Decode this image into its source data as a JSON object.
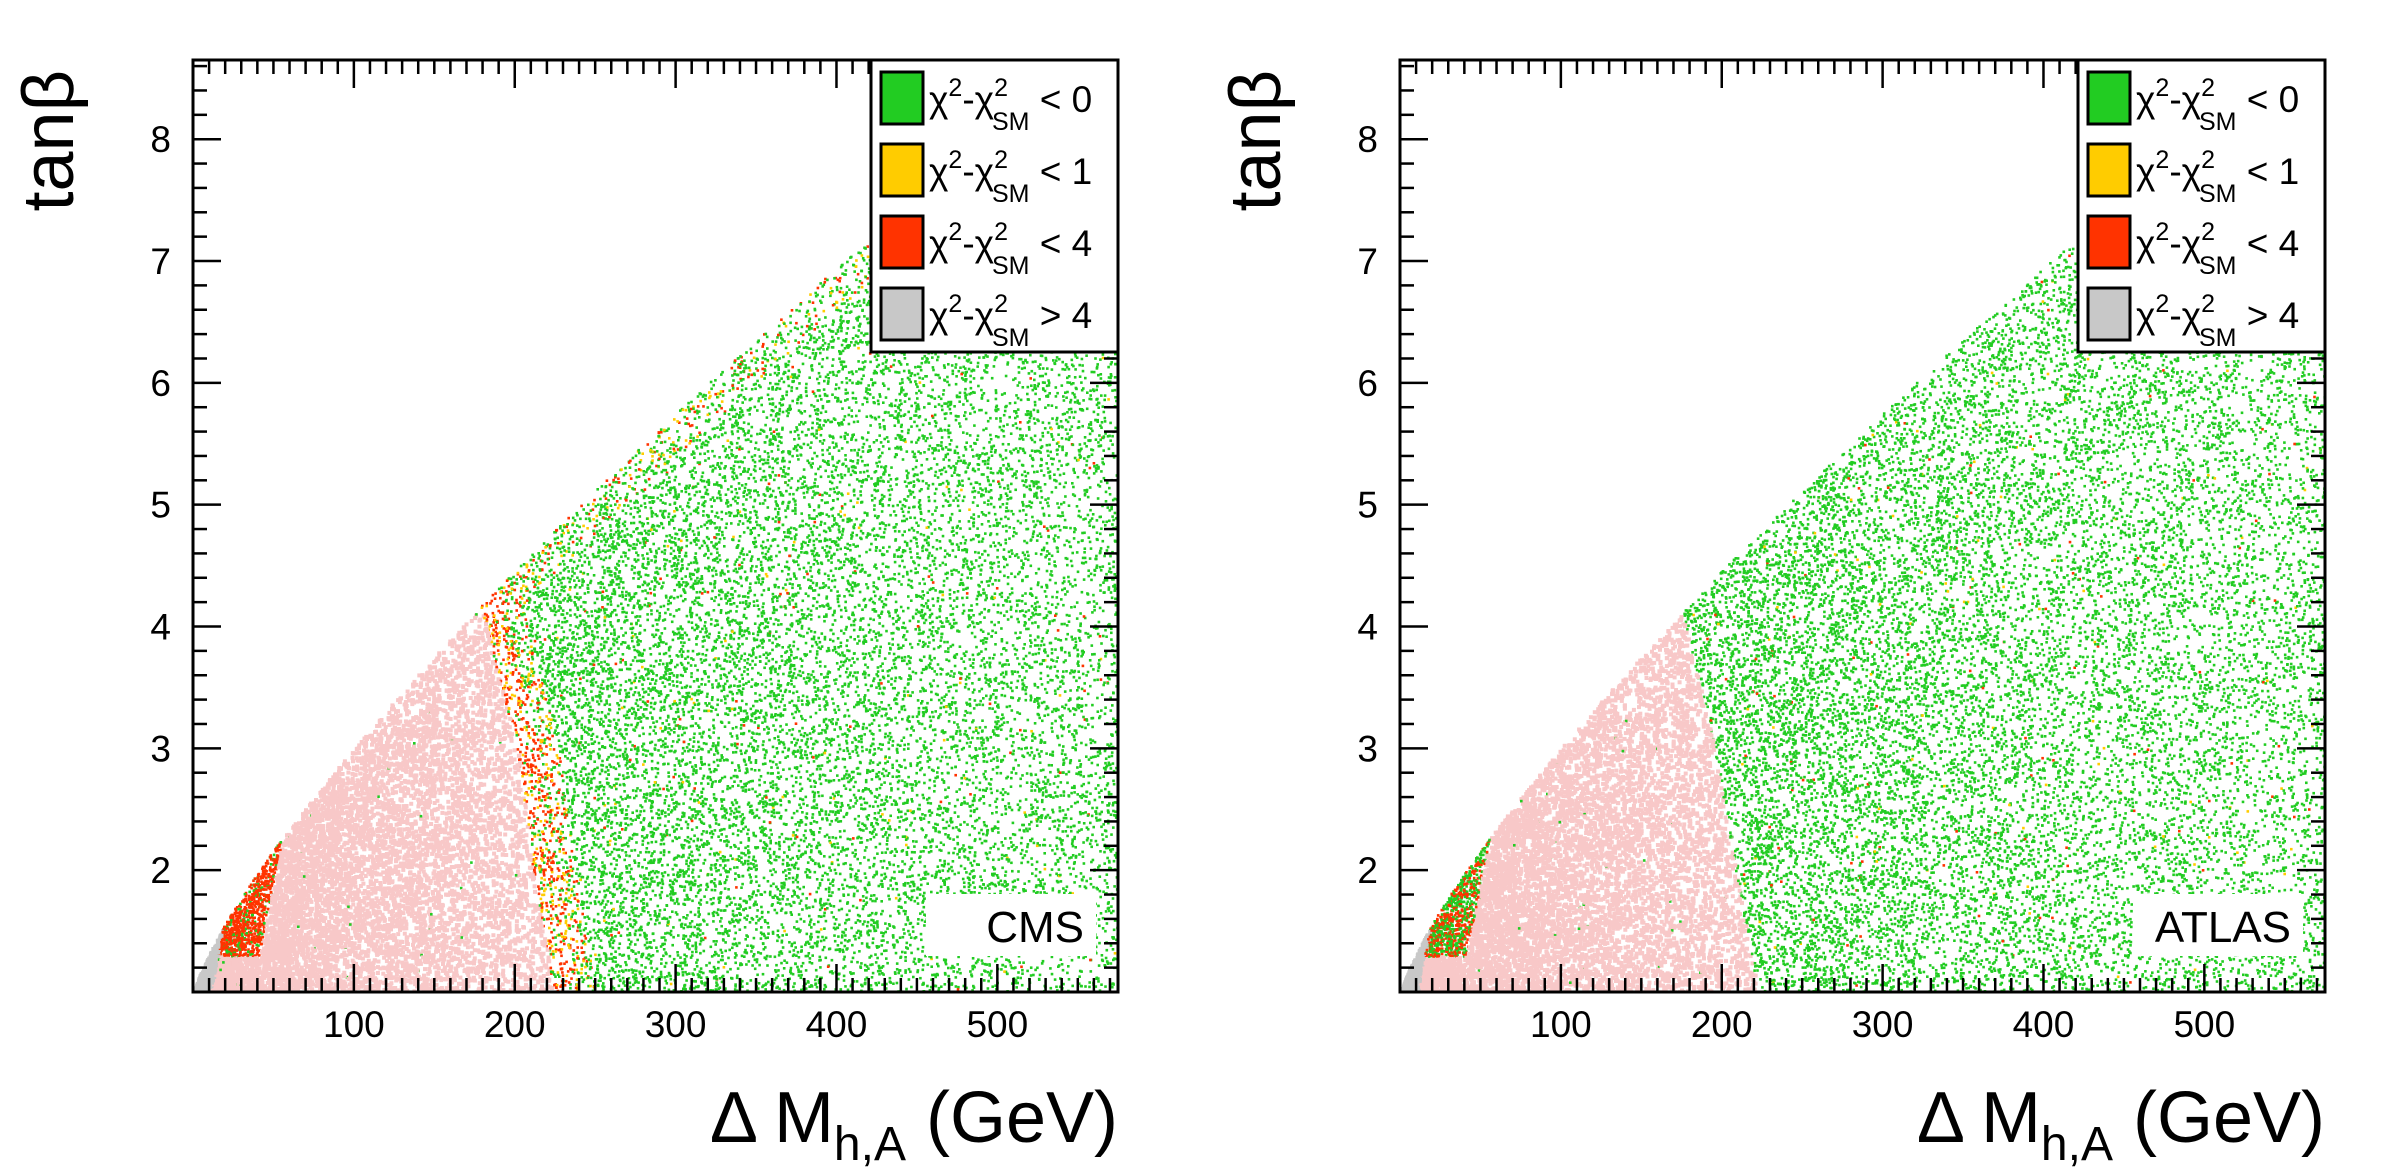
{
  "chart_data": [
    {
      "type": "scatter",
      "panel_label": "CMS",
      "xlabel": "Δ M_{h,A} (GeV)",
      "ylabel": "tanβ",
      "xlim": [
        0,
        575
      ],
      "ylim": [
        1,
        8.65
      ],
      "x_tick_labels": [
        "100",
        "200",
        "300",
        "400",
        "500"
      ],
      "y_tick_labels": [
        "2",
        "3",
        "4",
        "5",
        "6",
        "7",
        "8"
      ],
      "legend": [
        {
          "chi": "χ",
          "sup": "2",
          "dash": "-",
          "chi2": "χ",
          "sup2": "2",
          "sub2": "SM",
          "cmp": " < 0",
          "color": "#22cc22"
        },
        {
          "chi": "χ",
          "sup": "2",
          "dash": "-",
          "chi2": "χ",
          "sup2": "2",
          "sub2": "SM",
          "cmp": " < 1",
          "color": "#ffcc00"
        },
        {
          "chi": "χ",
          "sup": "2",
          "dash": "-",
          "chi2": "χ",
          "sup2": "2",
          "sub2": "SM",
          "cmp": " < 4",
          "color": "#ff3300"
        },
        {
          "chi": "χ",
          "sup": "2",
          "dash": "-",
          "chi2": "χ",
          "sup2": "2",
          "sub2": "SM",
          "cmp": " > 4",
          "color": "#c8c8c8"
        }
      ],
      "legend_position": "top-right",
      "excluded_region_color": "#f8c8c8",
      "regions": {
        "pink_boundary": [
          [
            190,
            4.3
          ],
          [
            215,
            3
          ],
          [
            225,
            2
          ],
          [
            238,
            1
          ]
        ],
        "red_band": "along the boundary, tanβ 1.3–5.5 and the low-mass edge near ΔM≈50–80"
      }
    },
    {
      "type": "scatter",
      "panel_label": "ATLAS",
      "xlabel": "Δ M_{h,A} (GeV)",
      "ylabel": "tanβ",
      "xlim": [
        0,
        575
      ],
      "ylim": [
        1,
        8.65
      ],
      "x_tick_labels": [
        "100",
        "200",
        "300",
        "400",
        "500"
      ],
      "y_tick_labels": [
        "2",
        "3",
        "4",
        "5",
        "6",
        "7",
        "8"
      ],
      "legend": [
        {
          "chi": "χ",
          "sup": "2",
          "dash": "-",
          "chi2": "χ",
          "sup2": "2",
          "sub2": "SM",
          "cmp": " < 0",
          "color": "#22cc22"
        },
        {
          "chi": "χ",
          "sup": "2",
          "dash": "-",
          "chi2": "χ",
          "sup2": "2",
          "sub2": "SM",
          "cmp": " < 1",
          "color": "#ffcc00"
        },
        {
          "chi": "χ",
          "sup": "2",
          "dash": "-",
          "chi2": "χ",
          "sup2": "2",
          "sub2": "SM",
          "cmp": " < 4",
          "color": "#ff3300"
        },
        {
          "chi": "χ",
          "sup": "2",
          "dash": "-",
          "chi2": "χ",
          "sup2": "2",
          "sub2": "SM",
          "cmp": " > 4",
          "color": "#c8c8c8"
        }
      ],
      "legend_position": "top-right",
      "excluded_region_color": "#f8c8c8",
      "regions": {
        "pink_boundary": [
          [
            172,
            4.3
          ],
          [
            195,
            3
          ],
          [
            208,
            2
          ],
          [
            222,
            1
          ]
        ],
        "red_band": "small, near low-mass edge ΔM≈30–60, tanβ 1.3–2.4"
      }
    }
  ]
}
